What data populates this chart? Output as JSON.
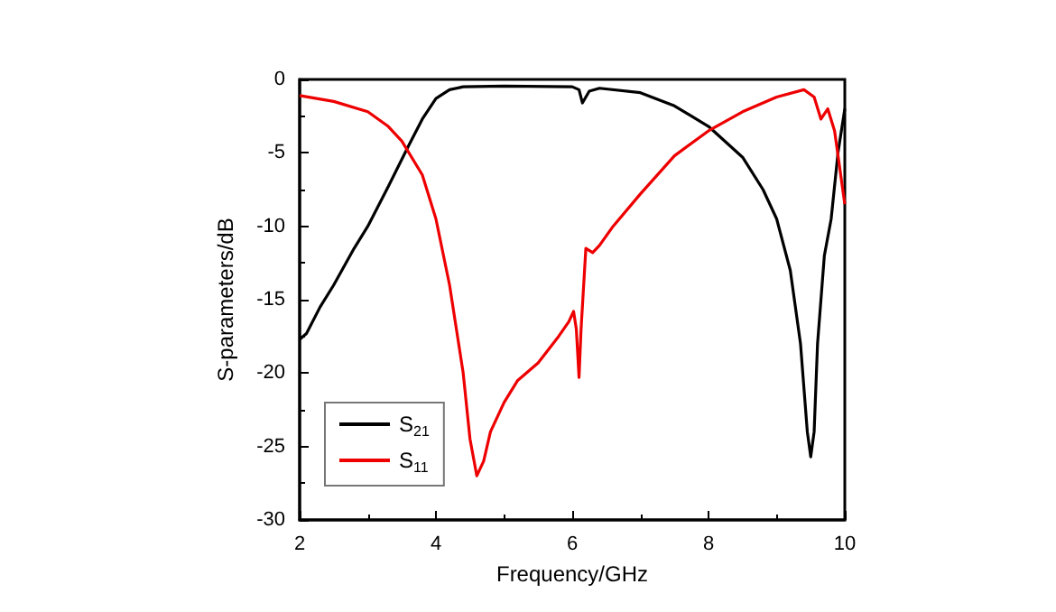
{
  "chart_data": {
    "type": "line",
    "xlabel": "Frequency/GHz",
    "ylabel": "S-parameters/dB",
    "xlim": [
      2,
      10
    ],
    "xticks": [
      2,
      4,
      6,
      8,
      10
    ],
    "ylim": [
      -30,
      0
    ],
    "yticks": [
      -30,
      -25,
      -20,
      -15,
      -10,
      -5,
      0
    ],
    "legend": "bottom left",
    "grid": false,
    "marker": "none",
    "line_style": "solid",
    "series": [
      {
        "name": "S$_{21}$",
        "color": "#000000",
        "x": [
          2,
          2.1,
          2.3,
          2.5,
          2.8,
          3,
          3.3,
          3.6,
          3.8,
          4,
          4.2,
          4.4,
          5,
          6,
          6.1,
          6.15,
          6.25,
          6.4,
          7,
          7.5,
          8,
          8.5,
          8.8,
          9,
          9.2,
          9.35,
          9.45,
          9.5,
          9.55,
          9.6,
          9.7,
          9.8,
          9.9,
          10
        ],
        "values": [
          -17.7,
          -17.3,
          -15.5,
          -14,
          -11.5,
          -10,
          -7.3,
          -4.5,
          -2.7,
          -1.3,
          -0.7,
          -0.5,
          -0.45,
          -0.5,
          -0.7,
          -1.6,
          -0.8,
          -0.6,
          -0.9,
          -1.8,
          -3.2,
          -5.3,
          -7.5,
          -9.5,
          -13,
          -18,
          -24,
          -25.7,
          -24,
          -18,
          -12,
          -9.5,
          -5,
          -2
        ]
      },
      {
        "name": "S$_{11}$",
        "color": "#ee0000",
        "x": [
          2,
          2.5,
          3,
          3.3,
          3.5,
          3.8,
          4,
          4.2,
          4.4,
          4.5,
          4.6,
          4.7,
          4.8,
          5,
          5.2,
          5.5,
          5.8,
          5.95,
          6.02,
          6.06,
          6.1,
          6.13,
          6.2,
          6.3,
          6.4,
          6.6,
          7,
          7.5,
          8,
          8.5,
          9,
          9.4,
          9.55,
          9.65,
          9.75,
          9.85,
          10
        ],
        "values": [
          -1.1,
          -1.5,
          -2.2,
          -3.2,
          -4.2,
          -6.5,
          -9.5,
          -14,
          -20,
          -24.5,
          -27,
          -26,
          -24,
          -22,
          -20.5,
          -19.3,
          -17.5,
          -16.5,
          -15.8,
          -17,
          -20.3,
          -17,
          -11.5,
          -11.8,
          -11.3,
          -10,
          -7.8,
          -5.2,
          -3.5,
          -2.2,
          -1.2,
          -0.7,
          -1.2,
          -2.7,
          -2,
          -3.5,
          -8.5
        ]
      }
    ]
  }
}
